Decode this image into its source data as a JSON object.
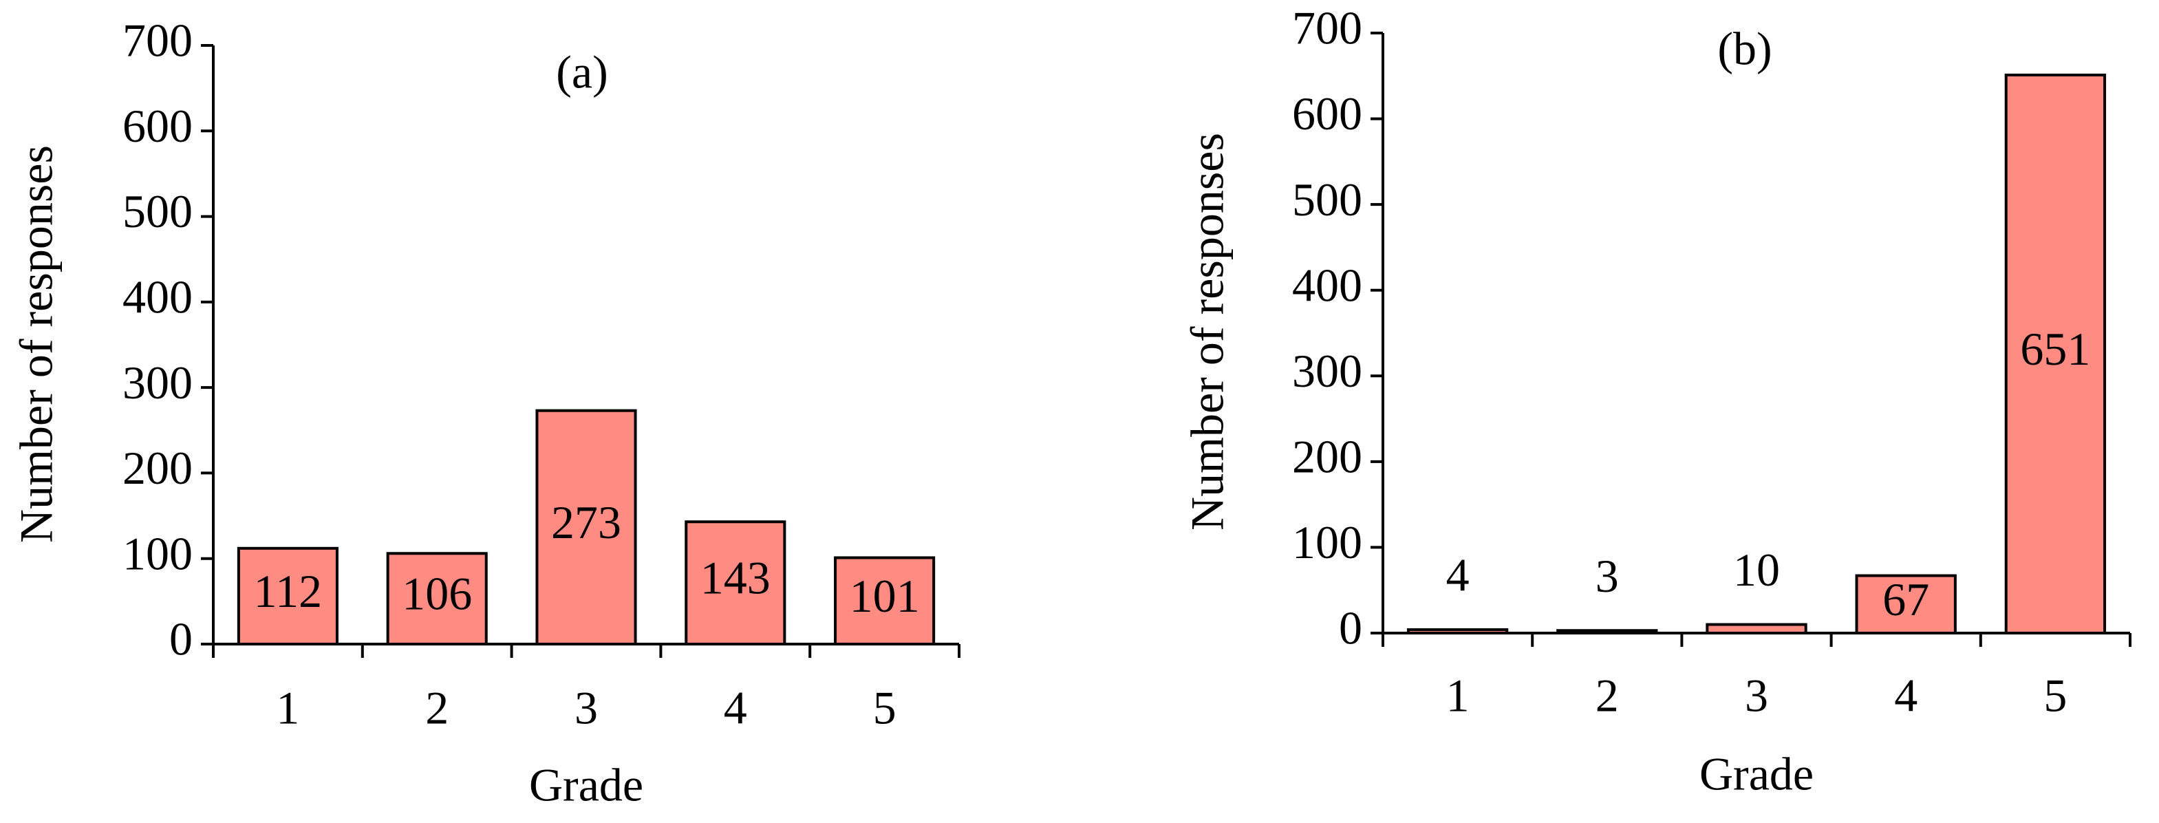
{
  "chart_data": [
    {
      "type": "bar",
      "title": "(a)",
      "xlabel": "Grade",
      "ylabel": "Number of responses",
      "categories": [
        "1",
        "2",
        "3",
        "4",
        "5"
      ],
      "values": [
        112,
        106,
        273,
        143,
        101
      ],
      "color": "#ff8c82",
      "ylim": [
        0,
        700
      ],
      "yticks": [
        0,
        100,
        200,
        300,
        400,
        500,
        600,
        700
      ]
    },
    {
      "type": "bar",
      "title": "(b)",
      "xlabel": "Grade",
      "ylabel": "Number of responses",
      "categories": [
        "1",
        "2",
        "3",
        "4",
        "5"
      ],
      "values": [
        4,
        3,
        10,
        67,
        651
      ],
      "color": "#ff8c82",
      "ylim": [
        0,
        700
      ],
      "yticks": [
        0,
        100,
        200,
        300,
        400,
        500,
        600,
        700
      ]
    }
  ]
}
